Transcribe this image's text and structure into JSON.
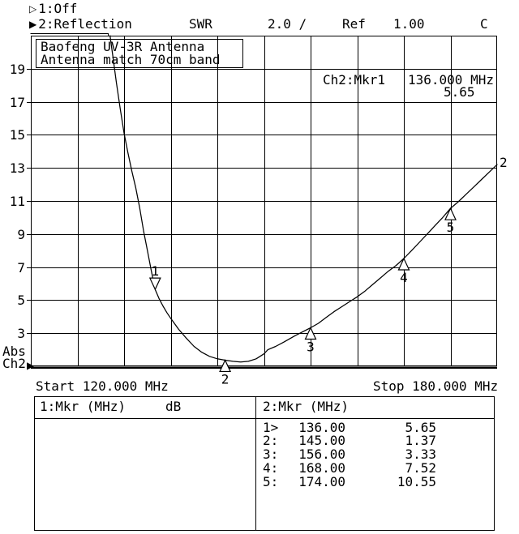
{
  "colors": {
    "fg": "#000000",
    "bg": "#ffffff"
  },
  "icons": {
    "ch1_arrow": "▷",
    "ch2_arrow": "▶",
    "ch2_axis_arrow": "▶"
  },
  "header": {
    "ch1_label": "1:Off",
    "ch2_label": "2:Reflection",
    "format_label": "SWR",
    "scale_label": "2.0 /",
    "ref_label": "Ref",
    "ref_value": "1.00",
    "cal_status": "C"
  },
  "chart": {
    "title_line1": "Baofeng UV-3R Antenna",
    "title_line2": "Antenna match 70cm band",
    "readout_label": "Ch2:Mkr1",
    "readout_freq": "136.000 MHz",
    "readout_value": "5.65",
    "start_label": "Start 120.000 MHz",
    "stop_label": "Stop 180.000 MHz",
    "abs_label": "Abs",
    "channel_label": "Ch2",
    "trace_label": "2"
  },
  "chart_data": {
    "type": "line",
    "title": "Baofeng UV-3R Antenna",
    "subtitle": "Antenna match 70cm band",
    "x_axis": {
      "label": "MHz",
      "start": 120,
      "stop": 180,
      "divisions": 10
    },
    "y_axis": {
      "label": "SWR",
      "ref": 1.0,
      "scale_per_div": 2.0,
      "min": 1,
      "max": 21,
      "divisions": 10,
      "tick_labels": [
        19,
        17,
        15,
        13,
        11,
        9,
        7,
        5,
        3
      ]
    },
    "grid": true,
    "series": [
      {
        "name": "Ch2 Reflection SWR",
        "points": [
          [
            130.2,
            21.0
          ],
          [
            130.6,
            19.6
          ],
          [
            131.0,
            18.2
          ],
          [
            131.5,
            16.6
          ],
          [
            132.0,
            15.1
          ],
          [
            132.5,
            13.9
          ],
          [
            133.0,
            12.8
          ],
          [
            133.5,
            11.8
          ],
          [
            134.0,
            10.6
          ],
          [
            134.5,
            9.2
          ],
          [
            135.0,
            8.0
          ],
          [
            135.5,
            6.8
          ],
          [
            136.0,
            5.65
          ],
          [
            136.5,
            5.1
          ],
          [
            137.0,
            4.65
          ],
          [
            137.5,
            4.25
          ],
          [
            138.0,
            3.9
          ],
          [
            139.0,
            3.25
          ],
          [
            140.0,
            2.7
          ],
          [
            141.0,
            2.2
          ],
          [
            142.0,
            1.85
          ],
          [
            143.0,
            1.6
          ],
          [
            144.0,
            1.45
          ],
          [
            145.0,
            1.37
          ],
          [
            146.0,
            1.3
          ],
          [
            147.0,
            1.26
          ],
          [
            148.0,
            1.3
          ],
          [
            149.0,
            1.45
          ],
          [
            150.0,
            1.75
          ],
          [
            150.5,
            2.0
          ],
          [
            151.5,
            2.2
          ],
          [
            152.5,
            2.45
          ],
          [
            154.0,
            2.85
          ],
          [
            156.0,
            3.33
          ],
          [
            157.0,
            3.6
          ],
          [
            158.0,
            3.95
          ],
          [
            159.0,
            4.3
          ],
          [
            160.0,
            4.6
          ],
          [
            161.0,
            4.9
          ],
          [
            162.0,
            5.2
          ],
          [
            163.0,
            5.55
          ],
          [
            164.0,
            5.95
          ],
          [
            165.0,
            6.35
          ],
          [
            166.0,
            6.75
          ],
          [
            167.0,
            7.1
          ],
          [
            168.0,
            7.52
          ],
          [
            169.0,
            8.0
          ],
          [
            170.0,
            8.5
          ],
          [
            171.0,
            9.0
          ],
          [
            172.0,
            9.5
          ],
          [
            173.0,
            10.0
          ],
          [
            174.0,
            10.55
          ],
          [
            175.0,
            10.95
          ],
          [
            176.0,
            11.4
          ],
          [
            177.0,
            11.85
          ],
          [
            178.0,
            12.3
          ],
          [
            179.0,
            12.75
          ],
          [
            180.0,
            13.2
          ]
        ]
      }
    ],
    "markers": [
      {
        "num": 1,
        "mhz": 136.0,
        "swr": 5.65,
        "label_side": "above"
      },
      {
        "num": 2,
        "mhz": 145.0,
        "swr": 1.37,
        "label_side": "below"
      },
      {
        "num": 3,
        "mhz": 156.0,
        "swr": 3.33,
        "label_side": "below"
      },
      {
        "num": 4,
        "mhz": 168.0,
        "swr": 7.52,
        "label_side": "below"
      },
      {
        "num": 5,
        "mhz": 174.0,
        "swr": 10.55,
        "label_side": "below"
      }
    ]
  },
  "marker_table": {
    "ch1_header": "1:Mkr (MHz)",
    "ch1_unit": "dB",
    "ch2_header": "2:Mkr (MHz)",
    "ch2_rows": [
      {
        "num": "1>",
        "freq": "136.00",
        "value": "5.65"
      },
      {
        "num": "2:",
        "freq": "145.00",
        "value": "1.37"
      },
      {
        "num": "3:",
        "freq": "156.00",
        "value": "3.33"
      },
      {
        "num": "4:",
        "freq": "168.00",
        "value": "7.52"
      },
      {
        "num": "5:",
        "freq": "174.00",
        "value": "10.55"
      }
    ]
  }
}
